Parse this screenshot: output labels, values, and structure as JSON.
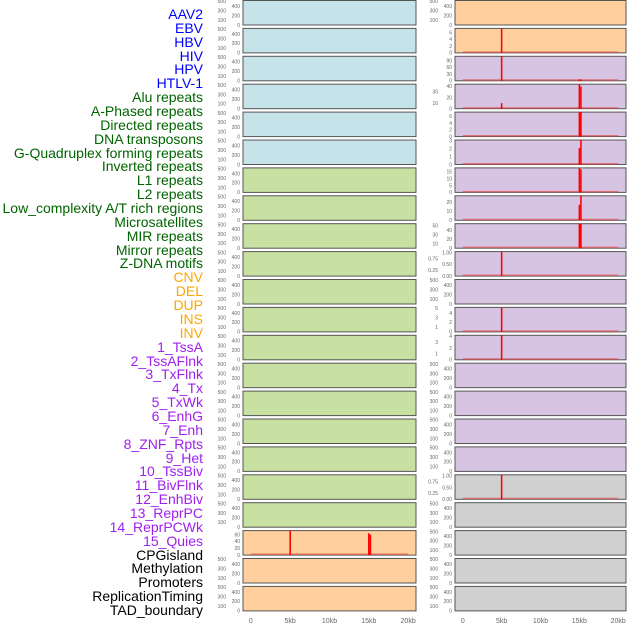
{
  "chart_data": {
    "type": "bar",
    "title": "",
    "xlabel": "",
    "ylabel": "",
    "xlim": [
      -1,
      21
    ],
    "x_ticks": [
      0,
      5,
      10,
      15,
      20
    ],
    "x_tick_labels": [
      "0",
      "5kb",
      "10kb",
      "15kb",
      "20kb"
    ],
    "group_colors": {
      "virus": "#c6e3ea",
      "repeat": "#c8e0a2",
      "sv": "#ffd09e",
      "chromhmm": "#d6c4e2",
      "other": "#d0d0d0"
    },
    "label_colors": {
      "virus": "#0000ff",
      "repeat": "#006400",
      "sv": "#ffa500",
      "chromhmm": "#a020f0",
      "other": "#000000"
    },
    "peak_color": "#ff0000",
    "series": [
      {
        "name": "AAV2",
        "group": "virus",
        "ylim": [
          0,
          520
        ],
        "ticks": [
          "0",
          "100",
          "200",
          "300",
          "400",
          "500"
        ],
        "peaks": []
      },
      {
        "name": "EBV",
        "group": "virus",
        "ylim": [
          0,
          520
        ],
        "ticks": [
          "0",
          "100",
          "200",
          "300",
          "400",
          "500"
        ],
        "peaks": []
      },
      {
        "name": "HBV",
        "group": "virus",
        "ylim": [
          0,
          520
        ],
        "ticks": [
          "0",
          "100",
          "200",
          "300",
          "400",
          "500"
        ],
        "peaks": []
      },
      {
        "name": "HIV",
        "group": "virus",
        "ylim": [
          0,
          520
        ],
        "ticks": [
          "0",
          "100",
          "200",
          "300",
          "400",
          "500"
        ],
        "peaks": []
      },
      {
        "name": "HPV",
        "group": "virus",
        "ylim": [
          0,
          520
        ],
        "ticks": [
          "0",
          "100",
          "200",
          "300",
          "400",
          "500"
        ],
        "peaks": []
      },
      {
        "name": "HTLV-1",
        "group": "virus",
        "ylim": [
          0,
          520
        ],
        "ticks": [
          "0",
          "100",
          "200",
          "300",
          "400",
          "500"
        ],
        "peaks": []
      },
      {
        "name": "Alu repeats",
        "group": "repeat",
        "ylim": [
          0,
          520
        ],
        "ticks": [
          "0",
          "100",
          "200",
          "300",
          "400",
          "500"
        ],
        "peaks": []
      },
      {
        "name": "A-Phased repeats",
        "group": "repeat",
        "ylim": [
          0,
          520
        ],
        "ticks": [
          "0",
          "100",
          "200",
          "300",
          "400",
          "500"
        ],
        "peaks": []
      },
      {
        "name": "Directed repeats",
        "group": "repeat",
        "ylim": [
          0,
          520
        ],
        "ticks": [
          "0",
          "100",
          "200",
          "300",
          "400",
          "500"
        ],
        "peaks": []
      },
      {
        "name": "DNA transposons",
        "group": "repeat",
        "ylim": [
          0,
          520
        ],
        "ticks": [
          "0",
          "100",
          "200",
          "300",
          "400",
          "500"
        ],
        "peaks": []
      },
      {
        "name": "G-Quadruplex forming repeats",
        "group": "repeat",
        "ylim": [
          0,
          520
        ],
        "ticks": [
          "0",
          "100",
          "200",
          "300",
          "400",
          "500"
        ],
        "peaks": []
      },
      {
        "name": "Inverted repeats",
        "group": "repeat",
        "ylim": [
          0,
          520
        ],
        "ticks": [
          "0",
          "100",
          "200",
          "300",
          "400",
          "500"
        ],
        "peaks": []
      },
      {
        "name": "L1 repeats",
        "group": "repeat",
        "ylim": [
          0,
          520
        ],
        "ticks": [
          "0",
          "100",
          "200",
          "300",
          "400",
          "500"
        ],
        "peaks": []
      },
      {
        "name": "L2 repeats",
        "group": "repeat",
        "ylim": [
          0,
          520
        ],
        "ticks": [
          "0",
          "100",
          "200",
          "300",
          "400",
          "500"
        ],
        "peaks": []
      },
      {
        "name": "Low_complexity A/T rich regions",
        "group": "repeat",
        "ylim": [
          0,
          520
        ],
        "ticks": [
          "0",
          "100",
          "200",
          "300",
          "400",
          "500"
        ],
        "peaks": []
      },
      {
        "name": "Microsatellites",
        "group": "repeat",
        "ylim": [
          0,
          520
        ],
        "ticks": [
          "0",
          "100",
          "200",
          "300",
          "400",
          "500"
        ],
        "peaks": []
      },
      {
        "name": "MIR repeats",
        "group": "repeat",
        "ylim": [
          0,
          520
        ],
        "ticks": [
          "0",
          "100",
          "200",
          "300",
          "400",
          "500"
        ],
        "peaks": []
      },
      {
        "name": "Mirror repeats",
        "group": "repeat",
        "ylim": [
          0,
          520
        ],
        "ticks": [
          "0",
          "100",
          "200",
          "300",
          "400",
          "500"
        ],
        "peaks": []
      },
      {
        "name": "Z-DNA motifs",
        "group": "repeat",
        "ylim": [
          0,
          520
        ],
        "ticks": [
          "0",
          "100",
          "200",
          "300",
          "400",
          "500"
        ],
        "peaks": []
      },
      {
        "name": "CNV",
        "group": "sv",
        "ylim": [
          0,
          72
        ],
        "ticks": [
          "0",
          "20",
          "40",
          "60"
        ],
        "peaks": [
          [
            4.9,
            5.1,
            72
          ],
          [
            14.9,
            15.1,
            64
          ],
          [
            15.1,
            15.3,
            60
          ]
        ]
      },
      {
        "name": "DEL",
        "group": "sv",
        "ylim": [
          0,
          520
        ],
        "ticks": [
          "0",
          "100",
          "200",
          "300",
          "400",
          "500"
        ],
        "peaks": []
      },
      {
        "name": "DUP",
        "group": "sv",
        "ylim": [
          0,
          520
        ],
        "ticks": [
          "0",
          "100",
          "200",
          "300",
          "400",
          "500"
        ],
        "peaks": []
      },
      {
        "name": "INS",
        "group": "sv",
        "ylim": [
          0,
          520
        ],
        "ticks": [
          "0",
          "100",
          "200",
          "300",
          "400",
          "500"
        ],
        "peaks": []
      },
      {
        "name": "INV",
        "group": "sv",
        "ylim": [
          0,
          7.3
        ],
        "ticks": [
          "0",
          "2",
          "4",
          "6"
        ],
        "peaks": [
          [
            4.9,
            5.1,
            7.3
          ]
        ]
      },
      {
        "name": "1_TssA",
        "group": "chromhmm",
        "ylim": [
          0,
          110
        ],
        "ticks": [
          "0",
          "30",
          "60",
          "90"
        ],
        "peaks": [
          [
            4.9,
            5.1,
            110
          ],
          [
            14.9,
            15.3,
            6
          ]
        ]
      },
      {
        "name": "2_TssAFlnk",
        "group": "chromhmm",
        "ylim": [
          0,
          44
        ],
        "ticks": [
          "0",
          "10",
          "20",
          "30",
          "40"
        ],
        "peaks": [
          [
            4.9,
            5.1,
            10
          ],
          [
            14.9,
            15.1,
            44
          ],
          [
            15.1,
            15.3,
            40
          ]
        ]
      },
      {
        "name": "3_TxFlnk",
        "group": "chromhmm",
        "ylim": [
          0,
          7.3
        ],
        "ticks": [
          "0",
          "2",
          "4",
          "6"
        ],
        "peaks": [
          [
            14.9,
            15.3,
            7.3
          ]
        ]
      },
      {
        "name": "4_Tx",
        "group": "chromhmm",
        "ylim": [
          0,
          3.1
        ],
        "ticks": [
          "0",
          "1",
          "2",
          "3"
        ],
        "peaks": [
          [
            14.9,
            15.1,
            2.1
          ],
          [
            15.1,
            15.3,
            3.1
          ]
        ]
      },
      {
        "name": "5_TxWk",
        "group": "chromhmm",
        "ylim": [
          0,
          18
        ],
        "ticks": [
          "0",
          "5",
          "10",
          "15"
        ],
        "peaks": [
          [
            14.9,
            15.1,
            18
          ],
          [
            15.1,
            15.3,
            17
          ]
        ]
      },
      {
        "name": "6_EnhG",
        "group": "chromhmm",
        "ylim": [
          0,
          27
        ],
        "ticks": [
          "0",
          "10",
          "20"
        ],
        "peaks": [
          [
            14.9,
            15.1,
            17
          ],
          [
            15.1,
            15.3,
            27
          ]
        ]
      },
      {
        "name": "7_Enh",
        "group": "chromhmm",
        "ylim": [
          0,
          55
        ],
        "ticks": [
          "0",
          "10",
          "20",
          "30",
          "40",
          "50"
        ],
        "peaks": [
          [
            14.9,
            15.3,
            55
          ]
        ]
      },
      {
        "name": "8_ZNF_Rpts",
        "group": "chromhmm",
        "ylim": [
          0,
          1.05
        ],
        "ticks": [
          "0.00",
          "0.25",
          "0.50",
          "0.75",
          "1.00"
        ],
        "peaks": [
          [
            4.9,
            5.1,
            1.05
          ]
        ]
      },
      {
        "name": "9_Het",
        "group": "chromhmm",
        "ylim": [
          0,
          520
        ],
        "ticks": [
          "0",
          "100",
          "200",
          "300",
          "400",
          "500"
        ],
        "peaks": []
      },
      {
        "name": "10_TssBiv",
        "group": "chromhmm",
        "ylim": [
          0,
          5.2
        ],
        "ticks": [
          "0",
          "1",
          "2",
          "3",
          "4",
          "5"
        ],
        "peaks": [
          [
            4.9,
            5.1,
            5.2
          ]
        ]
      },
      {
        "name": "11_BivFlnk",
        "group": "chromhmm",
        "ylim": [
          0,
          4.2
        ],
        "ticks": [
          "0",
          "1",
          "2",
          "3",
          "4"
        ],
        "peaks": [
          [
            4.9,
            5.1,
            4.2
          ]
        ]
      },
      {
        "name": "12_EnhBiv",
        "group": "chromhmm",
        "ylim": [
          0,
          520
        ],
        "ticks": [
          "0",
          "100",
          "200",
          "300",
          "400",
          "500"
        ],
        "peaks": []
      },
      {
        "name": "13_ReprPC",
        "group": "chromhmm",
        "ylim": [
          0,
          520
        ],
        "ticks": [
          "0",
          "100",
          "200",
          "300",
          "400",
          "500"
        ],
        "peaks": []
      },
      {
        "name": "14_ReprPCWk",
        "group": "chromhmm",
        "ylim": [
          0,
          520
        ],
        "ticks": [
          "0",
          "100",
          "200",
          "300",
          "400",
          "500"
        ],
        "peaks": []
      },
      {
        "name": "15_Quies",
        "group": "chromhmm",
        "ylim": [
          0,
          520
        ],
        "ticks": [
          "0",
          "100",
          "200",
          "300",
          "400",
          "500"
        ],
        "peaks": []
      },
      {
        "name": "CPGisland",
        "group": "other",
        "ylim": [
          0,
          1.05
        ],
        "ticks": [
          "0.00",
          "0.25",
          "0.50",
          "0.75",
          "1.00"
        ],
        "peaks": [
          [
            4.9,
            5.1,
            1.05
          ]
        ]
      },
      {
        "name": "Methylation",
        "group": "other",
        "ylim": [
          0,
          520
        ],
        "ticks": [
          "0",
          "100",
          "200",
          "300",
          "400",
          "500"
        ],
        "peaks": []
      },
      {
        "name": "Promoters",
        "group": "other",
        "ylim": [
          0,
          520
        ],
        "ticks": [
          "0",
          "100",
          "200",
          "300",
          "400",
          "500"
        ],
        "peaks": []
      },
      {
        "name": "ReplicationTiming",
        "group": "other",
        "ylim": [
          0,
          520
        ],
        "ticks": [
          "0",
          "100",
          "200",
          "300",
          "400",
          "500"
        ],
        "peaks": []
      },
      {
        "name": "TAD_boundary",
        "group": "other",
        "ylim": [
          0,
          520
        ],
        "ticks": [
          "0",
          "100",
          "200",
          "300",
          "400",
          "500"
        ],
        "peaks": []
      }
    ]
  }
}
